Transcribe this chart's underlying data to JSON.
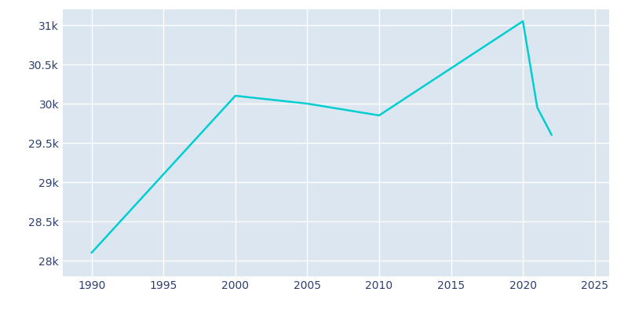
{
  "years": [
    1990,
    2000,
    2005,
    2010,
    2020,
    2021,
    2022
  ],
  "population": [
    28100,
    30100,
    30000,
    29850,
    31050,
    29950,
    29600
  ],
  "line_color": "#00CED1",
  "background_color": "#dce6f0",
  "figure_background": "#ffffff",
  "grid_color": "#ffffff",
  "tick_color": "#2e3f6e",
  "xlim": [
    1988,
    2026
  ],
  "ylim": [
    27800,
    31200
  ],
  "xticks": [
    1990,
    1995,
    2000,
    2005,
    2010,
    2015,
    2020,
    2025
  ],
  "ytick_values": [
    28000,
    28500,
    29000,
    29500,
    30000,
    30500,
    31000
  ],
  "ytick_labels": [
    "28k",
    "28.5k",
    "29k",
    "29.5k",
    "30k",
    "30.5k",
    "31k"
  ],
  "line_width": 1.8
}
